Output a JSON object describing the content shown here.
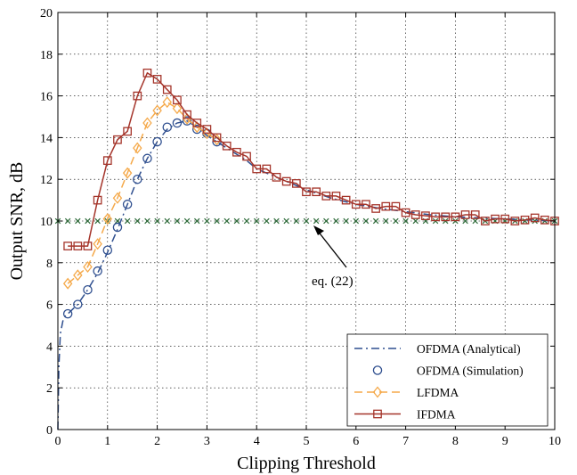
{
  "chart_data": {
    "type": "line",
    "title": "",
    "xlabel": "Clipping Threshold",
    "ylabel": "Output SNR, dB",
    "xlim": [
      0,
      10
    ],
    "ylim": [
      0,
      20
    ],
    "xticks": [
      0,
      1,
      2,
      3,
      4,
      5,
      6,
      7,
      8,
      9,
      10
    ],
    "yticks": [
      0,
      2,
      4,
      6,
      8,
      10,
      12,
      14,
      16,
      18,
      20
    ],
    "grid": true,
    "legend_position": "bottom-right",
    "annotation": {
      "text": "eq. (22)",
      "points_to": [
        5.2,
        10
      ]
    },
    "reference_line": {
      "y": 10,
      "marker": "x",
      "color": "#2e6b3a"
    },
    "series": [
      {
        "name": "OFDMA (Analytical)",
        "style": "dash-dot",
        "color": "#2f4f8f",
        "marker": "none",
        "x": [
          0,
          0.02,
          0.05,
          0.1,
          0.15,
          0.2,
          0.4,
          0.6,
          0.8,
          1.0,
          1.2,
          1.4,
          1.6,
          1.8,
          2.0,
          2.2,
          2.4,
          2.6,
          2.8,
          3.0,
          3.2,
          3.4,
          3.6,
          3.8,
          4.0,
          4.5,
          5.0,
          5.5,
          6.0,
          6.5,
          7.0,
          7.5,
          8.0,
          8.5,
          9.0,
          9.5,
          10.0
        ],
        "y": [
          0,
          3.0,
          4.6,
          5.2,
          5.45,
          5.55,
          6.0,
          6.7,
          7.5,
          8.5,
          9.6,
          10.8,
          12.0,
          13.0,
          13.8,
          14.4,
          14.7,
          14.8,
          14.5,
          14.1,
          13.8,
          13.5,
          13.2,
          12.9,
          12.5,
          12.0,
          11.5,
          11.1,
          10.8,
          10.6,
          10.45,
          10.3,
          10.2,
          10.15,
          10.1,
          10.05,
          10.0
        ]
      },
      {
        "name": "OFDMA (Simulation)",
        "style": "none",
        "color": "#2f4f8f",
        "marker": "circle",
        "x": [
          0.2,
          0.4,
          0.6,
          0.8,
          1.0,
          1.2,
          1.4,
          1.6,
          1.8,
          2.0,
          2.2,
          2.4,
          2.6,
          2.8,
          3.0,
          3.2
        ],
        "y": [
          5.55,
          6.0,
          6.7,
          7.6,
          8.6,
          9.7,
          10.8,
          12.0,
          13.0,
          13.8,
          14.5,
          14.7,
          14.8,
          14.4,
          14.2,
          13.8
        ]
      },
      {
        "name": "LFDMA",
        "style": "dashed",
        "color": "#f5a94a",
        "marker": "diamond",
        "x": [
          0.2,
          0.4,
          0.6,
          0.8,
          1.0,
          1.2,
          1.4,
          1.6,
          1.8,
          2.0,
          2.2,
          2.4,
          2.6,
          2.8,
          3.0,
          3.2
        ],
        "y": [
          7.0,
          7.4,
          7.8,
          8.9,
          10.1,
          11.1,
          12.3,
          13.5,
          14.7,
          15.3,
          15.7,
          15.4,
          14.9,
          14.5,
          14.2,
          13.9
        ]
      },
      {
        "name": "IFDMA",
        "style": "solid",
        "color": "#a5352b",
        "marker": "square",
        "x": [
          0.2,
          0.4,
          0.6,
          0.8,
          1.0,
          1.2,
          1.4,
          1.6,
          1.8,
          2.0,
          2.2,
          2.4,
          2.6,
          2.8,
          3.0,
          3.2,
          3.4,
          3.6,
          3.8,
          4.0,
          4.2,
          4.4,
          4.6,
          4.8,
          5.0,
          5.2,
          5.4,
          5.6,
          5.8,
          6.0,
          6.2,
          6.4,
          6.6,
          6.8,
          7.0,
          7.2,
          7.4,
          7.6,
          7.8,
          8.0,
          8.2,
          8.4,
          8.6,
          8.8,
          9.0,
          9.2,
          9.4,
          9.6,
          9.8,
          10.0
        ],
        "y": [
          8.8,
          8.8,
          8.8,
          11.0,
          12.9,
          13.9,
          14.3,
          16.0,
          17.1,
          16.8,
          16.3,
          15.8,
          15.1,
          14.7,
          14.4,
          14.0,
          13.6,
          13.3,
          13.1,
          12.5,
          12.5,
          12.1,
          11.9,
          11.8,
          11.4,
          11.4,
          11.2,
          11.2,
          11.0,
          10.8,
          10.8,
          10.6,
          10.7,
          10.7,
          10.4,
          10.3,
          10.25,
          10.2,
          10.2,
          10.2,
          10.3,
          10.3,
          10.0,
          10.1,
          10.1,
          10.0,
          10.05,
          10.15,
          10.05,
          10.0
        ]
      }
    ]
  }
}
